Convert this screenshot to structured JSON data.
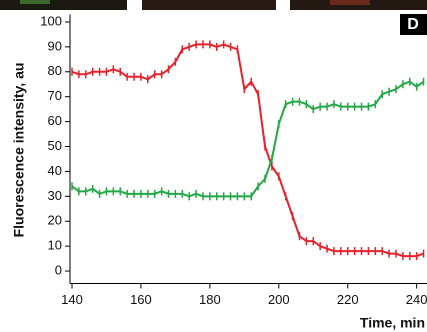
{
  "chart_data": {
    "type": "line",
    "panel_label": "D",
    "xlabel": "Time, min",
    "ylabel": "Fluorescence intensity, au",
    "xlim": [
      140,
      243
    ],
    "ylim": [
      -5,
      103
    ],
    "xticks": [
      140,
      160,
      180,
      200,
      220,
      240
    ],
    "yticks": [
      0,
      10,
      20,
      30,
      40,
      50,
      60,
      70,
      80,
      90,
      100
    ],
    "x": [
      140,
      142,
      144,
      146,
      148,
      150,
      152,
      154,
      156,
      158,
      160,
      162,
      164,
      166,
      168,
      170,
      172,
      174,
      176,
      178,
      180,
      182,
      184,
      186,
      188,
      190,
      192,
      194,
      196,
      198,
      200,
      202,
      204,
      206,
      208,
      210,
      212,
      214,
      216,
      218,
      220,
      222,
      224,
      226,
      228,
      230,
      232,
      234,
      236,
      238,
      240,
      242
    ],
    "series": [
      {
        "color": "#e8202a",
        "values": [
          80,
          79,
          79,
          80,
          80,
          80,
          81,
          80,
          78,
          78,
          78,
          77,
          79,
          79,
          81,
          84,
          89,
          90,
          91,
          91,
          91,
          90,
          91,
          90,
          89,
          73,
          76,
          71,
          50,
          42,
          38,
          30,
          22,
          14,
          12,
          12,
          10,
          9,
          8,
          8,
          8,
          8,
          8,
          8,
          8,
          8,
          7,
          7,
          6,
          6,
          6,
          7
        ]
      },
      {
        "color": "#22a844",
        "values": [
          34,
          32,
          32,
          33,
          31,
          32,
          32,
          32,
          31,
          31,
          31,
          31,
          31,
          32,
          31,
          31,
          31,
          30,
          31,
          30,
          30,
          30,
          30,
          30,
          30,
          30,
          30,
          34,
          37,
          45,
          59,
          67,
          68,
          68,
          67,
          65,
          66,
          66,
          67,
          66,
          66,
          66,
          66,
          66,
          67,
          71,
          72,
          73,
          75,
          76,
          74,
          76
        ]
      }
    ]
  }
}
